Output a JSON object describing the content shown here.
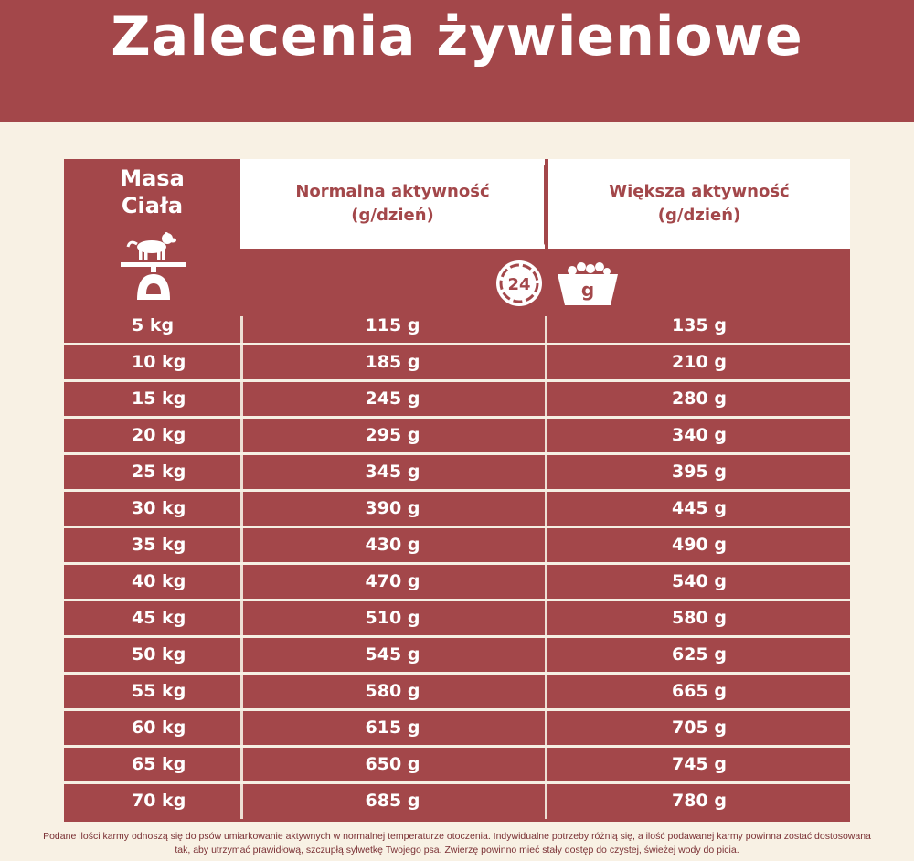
{
  "title": "Zalecenia żywieniowe",
  "header": {
    "mass_line1": "Masa",
    "mass_line2": "Ciała",
    "normal_line1": "Normalna aktywność",
    "normal_line2": "(g/dzień)",
    "more_line1": "Większa aktywność",
    "more_line2": "(g/dzień)",
    "clock_value": "24",
    "bowl_label": "g"
  },
  "colors": {
    "primary": "#a3474a",
    "background": "#f8f1e4",
    "text_light": "#ffffff"
  },
  "icons": [
    "dog-on-scale-icon",
    "clock-24h-icon",
    "food-bowl-icon"
  ],
  "rows": [
    {
      "mass": "5 kg",
      "normal": "115 g",
      "more": "135 g"
    },
    {
      "mass": "10 kg",
      "normal": "185 g",
      "more": "210 g"
    },
    {
      "mass": "15 kg",
      "normal": "245 g",
      "more": "280 g"
    },
    {
      "mass": "20 kg",
      "normal": "295 g",
      "more": "340 g"
    },
    {
      "mass": "25 kg",
      "normal": "345 g",
      "more": "395 g"
    },
    {
      "mass": "30 kg",
      "normal": "390 g",
      "more": "445 g"
    },
    {
      "mass": "35 kg",
      "normal": "430 g",
      "more": "490 g"
    },
    {
      "mass": "40 kg",
      "normal": "470 g",
      "more": "540 g"
    },
    {
      "mass": "45 kg",
      "normal": "510 g",
      "more": "580 g"
    },
    {
      "mass": "50 kg",
      "normal": "545 g",
      "more": "625 g"
    },
    {
      "mass": "55 kg",
      "normal": "580 g",
      "more": "665 g"
    },
    {
      "mass": "60 kg",
      "normal": "615 g",
      "more": "705 g"
    },
    {
      "mass": "65 kg",
      "normal": "650 g",
      "more": "745 g"
    },
    {
      "mass": "70 kg",
      "normal": "685 g",
      "more": "780 g"
    }
  ],
  "footnote": "Podane ilości karmy odnoszą się do psów umiarkowanie aktywnych w normalnej temperaturze otoczenia. Indywidualne potrzeby różnią się, a ilość podawanej karmy powinna zostać dostosowana tak, aby utrzymać prawidłową, szczupłą sylwetkę Twojego psa. Zwierzę powinno mieć stały dostęp do czystej, świeżej wody do picia."
}
